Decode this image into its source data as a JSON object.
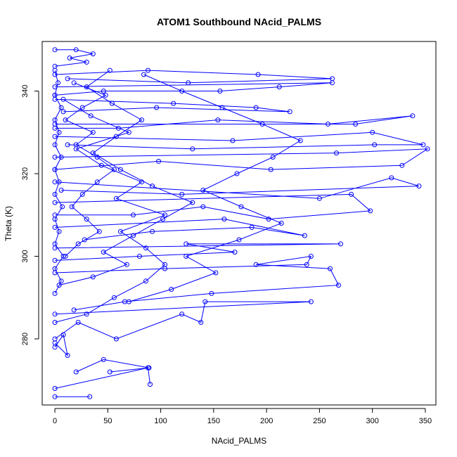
{
  "chart_data": {
    "type": "line",
    "title": "ATOM1 Southbound NAcid_PALMS",
    "xlabel": "NAcid_PALMS",
    "ylabel": "Theta (K)",
    "xlim": [
      -12,
      360
    ],
    "ylim": [
      264,
      352
    ],
    "x_ticks": [
      0,
      50,
      100,
      150,
      200,
      250,
      300,
      350
    ],
    "y_ticks": [
      280,
      300,
      320,
      340
    ],
    "x_tick_labels": [
      "0",
      "50",
      "100",
      "150",
      "200",
      "250",
      "300",
      "350"
    ],
    "y_tick_labels": [
      "280",
      "300",
      "320",
      "340"
    ],
    "grid": false,
    "legend": "none",
    "markers": "open-circle",
    "series_color": "#0000ff",
    "series": [
      {
        "values": [
          [
            0,
            266
          ],
          [
            33,
            266
          ]
        ]
      },
      {
        "values": [
          [
            0,
            268
          ],
          [
            88,
            273
          ],
          [
            90,
            269
          ]
        ]
      },
      {
        "values": [
          [
            20,
            272
          ],
          [
            46,
            275
          ],
          [
            89,
            273
          ],
          [
            52,
            272
          ]
        ]
      },
      {
        "values": [
          [
            0,
            278
          ],
          [
            8,
            281
          ],
          [
            12,
            276
          ],
          [
            0,
            279
          ]
        ]
      },
      {
        "values": [
          [
            0,
            280
          ],
          [
            22,
            284
          ],
          [
            58,
            280
          ],
          [
            120,
            286
          ],
          [
            138,
            284
          ],
          [
            142,
            289
          ],
          [
            242,
            289
          ],
          [
            0,
            286
          ]
        ]
      },
      {
        "values": [
          [
            18,
            287
          ],
          [
            66,
            289
          ],
          [
            148,
            291
          ],
          [
            268,
            293
          ],
          [
            260,
            297
          ],
          [
            190,
            298
          ],
          [
            242,
            300
          ],
          [
            238,
            298
          ],
          [
            104,
            297
          ],
          [
            0,
            296
          ]
        ]
      },
      {
        "values": [
          [
            0,
            299
          ],
          [
            80,
            300
          ],
          [
            170,
            301
          ],
          [
            124,
            303
          ],
          [
            270,
            303
          ],
          [
            0,
            302
          ]
        ]
      },
      {
        "values": [
          [
            28,
            304
          ],
          [
            92,
            306
          ],
          [
            186,
            307
          ],
          [
            236,
            305
          ],
          [
            160,
            309
          ],
          [
            0,
            307
          ]
        ]
      },
      {
        "values": [
          [
            0,
            310
          ],
          [
            74,
            310
          ],
          [
            140,
            312
          ],
          [
            202,
            309
          ],
          [
            298,
            311
          ],
          [
            280,
            315
          ],
          [
            0,
            313
          ]
        ]
      },
      {
        "values": [
          [
            6,
            316
          ],
          [
            120,
            315
          ],
          [
            344,
            317
          ],
          [
            318,
            319
          ],
          [
            250,
            314
          ],
          [
            0,
            318
          ]
        ]
      },
      {
        "values": [
          [
            0,
            321
          ],
          [
            98,
            323
          ],
          [
            204,
            321
          ],
          [
            328,
            322
          ],
          [
            352,
            326
          ],
          [
            266,
            325
          ],
          [
            0,
            324
          ]
        ]
      },
      {
        "values": [
          [
            12,
            327
          ],
          [
            130,
            326
          ],
          [
            302,
            327
          ],
          [
            348,
            327
          ],
          [
            300,
            330
          ],
          [
            168,
            328
          ],
          [
            0,
            329
          ]
        ]
      },
      {
        "values": [
          [
            0,
            331
          ],
          [
            60,
            331
          ],
          [
            154,
            333
          ],
          [
            258,
            332
          ],
          [
            338,
            334
          ],
          [
            284,
            332
          ],
          [
            0,
            332
          ]
        ]
      },
      {
        "values": [
          [
            8,
            335
          ],
          [
            96,
            336
          ],
          [
            222,
            335
          ],
          [
            190,
            336
          ],
          [
            112,
            337
          ],
          [
            0,
            338
          ]
        ]
      },
      {
        "values": [
          [
            0,
            339
          ],
          [
            46,
            340
          ],
          [
            156,
            340
          ],
          [
            212,
            341
          ],
          [
            262,
            342
          ],
          [
            0,
            341
          ]
        ]
      },
      {
        "values": [
          [
            12,
            343
          ],
          [
            126,
            342
          ],
          [
            262,
            343
          ],
          [
            192,
            344
          ],
          [
            88,
            345
          ],
          [
            0,
            344
          ]
        ]
      },
      {
        "values": [
          [
            0,
            346
          ],
          [
            30,
            347
          ],
          [
            14,
            348
          ],
          [
            36,
            349
          ],
          [
            20,
            350
          ],
          [
            0,
            350
          ]
        ]
      },
      {
        "values": [
          [
            0,
            284
          ],
          [
            30,
            286
          ],
          [
            56,
            290
          ],
          [
            86,
            294
          ],
          [
            104,
            298
          ],
          [
            86,
            302
          ],
          [
            62,
            306
          ],
          [
            104,
            310
          ],
          [
            58,
            314
          ],
          [
            82,
            318
          ],
          [
            44,
            322
          ],
          [
            20,
            326
          ],
          [
            70,
            330
          ],
          [
            34,
            334
          ],
          [
            8,
            338
          ]
        ]
      },
      {
        "values": [
          [
            4,
            293
          ],
          [
            36,
            295
          ],
          [
            68,
            298
          ],
          [
            46,
            301
          ],
          [
            74,
            305
          ],
          [
            102,
            309
          ],
          [
            130,
            313
          ],
          [
            92,
            317
          ],
          [
            62,
            321
          ],
          [
            36,
            325
          ],
          [
            58,
            329
          ],
          [
            82,
            333
          ],
          [
            54,
            337
          ],
          [
            30,
            341
          ],
          [
            52,
            345
          ]
        ]
      },
      {
        "values": [
          [
            10,
            300
          ],
          [
            22,
            303
          ],
          [
            42,
            306
          ],
          [
            30,
            309
          ],
          [
            16,
            312
          ],
          [
            26,
            315
          ],
          [
            40,
            318
          ],
          [
            56,
            321
          ],
          [
            40,
            324
          ],
          [
            20,
            327
          ],
          [
            36,
            330
          ],
          [
            10,
            333
          ],
          [
            26,
            336
          ],
          [
            48,
            339
          ],
          [
            18,
            342
          ]
        ]
      },
      {
        "values": [
          [
            70,
            289
          ],
          [
            110,
            292
          ],
          [
            152,
            296
          ],
          [
            124,
            300
          ],
          [
            174,
            304
          ],
          [
            214,
            308
          ],
          [
            176,
            312
          ],
          [
            140,
            316
          ],
          [
            172,
            320
          ],
          [
            206,
            324
          ],
          [
            232,
            328
          ],
          [
            196,
            332
          ],
          [
            158,
            336
          ],
          [
            120,
            340
          ],
          [
            84,
            344
          ]
        ]
      },
      {
        "values": [
          [
            0,
            291
          ],
          [
            6,
            294
          ],
          [
            0,
            297
          ],
          [
            8,
            300
          ],
          [
            0,
            303
          ],
          [
            4,
            306
          ],
          [
            0,
            309
          ],
          [
            7,
            312
          ],
          [
            0,
            315
          ],
          [
            4,
            318
          ],
          [
            0,
            321
          ],
          [
            6,
            324
          ],
          [
            0,
            327
          ],
          [
            4,
            330
          ],
          [
            0,
            333
          ],
          [
            6,
            336
          ],
          [
            0,
            339
          ],
          [
            3,
            342
          ],
          [
            0,
            345
          ]
        ]
      }
    ]
  }
}
